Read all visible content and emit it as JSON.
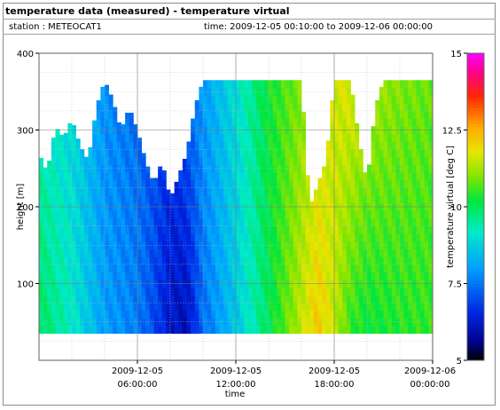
{
  "header": {
    "title": "temperature data (measured) - temperature virtual",
    "station": "station : METEOCAT1",
    "timerange": "time: 2009-12-05 00:10:00 to 2009-12-06 00:00:00"
  },
  "chart_data": {
    "type": "heatmap",
    "xlabel": "time",
    "ylabel": "height [m]",
    "colorbar_label": "temperature virtual [deg C]",
    "x_range_hours": [
      0,
      24
    ],
    "ylim": [
      0,
      400
    ],
    "clim": [
      5,
      15
    ],
    "x_ticks": [
      {
        "hour": 6,
        "line1": "2009-12-05",
        "line2": "06:00:00"
      },
      {
        "hour": 12,
        "line1": "2009-12-05",
        "line2": "12:00:00"
      },
      {
        "hour": 18,
        "line1": "2009-12-05",
        "line2": "18:00:00"
      },
      {
        "hour": 24,
        "line1": "2009-12-06",
        "line2": "00:00:00"
      }
    ],
    "y_ticks": [
      100,
      200,
      300,
      400
    ],
    "colorbar_ticks": [
      {
        "value": 5,
        "label": "5"
      },
      {
        "value": 7.5,
        "label": "7.5"
      },
      {
        "value": 10,
        "label": "10"
      },
      {
        "value": 12.5,
        "label": "12.5"
      },
      {
        "value": 15,
        "label": "15"
      }
    ],
    "data_min_height_m": 35,
    "profile_top_m": [
      [
        0.0,
        270
      ],
      [
        0.5,
        245
      ],
      [
        1.0,
        305
      ],
      [
        1.5,
        290
      ],
      [
        2.0,
        315
      ],
      [
        2.5,
        280
      ],
      [
        3.0,
        260
      ],
      [
        3.5,
        330
      ],
      [
        4.0,
        365
      ],
      [
        4.5,
        340
      ],
      [
        5.0,
        300
      ],
      [
        5.5,
        330
      ],
      [
        6.0,
        300
      ],
      [
        6.5,
        260
      ],
      [
        7.0,
        230
      ],
      [
        7.5,
        260
      ],
      [
        8.0,
        210
      ],
      [
        8.5,
        240
      ],
      [
        9.0,
        270
      ],
      [
        9.5,
        330
      ],
      [
        10.0,
        365
      ],
      [
        11.0,
        365
      ],
      [
        12.0,
        365
      ],
      [
        13.0,
        365
      ],
      [
        14.0,
        365
      ],
      [
        15.0,
        365
      ],
      [
        16.0,
        365
      ],
      [
        16.5,
        200
      ],
      [
        17.0,
        230
      ],
      [
        17.5,
        260
      ],
      [
        18.0,
        365
      ],
      [
        19.0,
        365
      ],
      [
        19.5,
        290
      ],
      [
        20.0,
        230
      ],
      [
        20.5,
        330
      ],
      [
        21.0,
        365
      ],
      [
        22.0,
        365
      ],
      [
        23.0,
        365
      ],
      [
        24.0,
        365
      ]
    ],
    "surface_temperature_by_hour": [
      [
        0,
        10.0
      ],
      [
        2,
        9.2
      ],
      [
        4,
        8.0
      ],
      [
        6,
        7.6
      ],
      [
        7,
        7.0
      ],
      [
        8,
        6.2
      ],
      [
        9,
        6.0
      ],
      [
        10,
        7.4
      ],
      [
        12,
        8.6
      ],
      [
        14,
        10.0
      ],
      [
        16,
        11.5
      ],
      [
        17,
        12.2
      ],
      [
        18,
        11.5
      ],
      [
        19,
        10.5
      ],
      [
        20,
        10.2
      ],
      [
        22,
        10.4
      ],
      [
        24,
        10.5
      ]
    ],
    "upper_temperature_by_hour": [
      [
        0,
        9.2
      ],
      [
        2,
        8.8
      ],
      [
        4,
        7.8
      ],
      [
        6,
        7.4
      ],
      [
        8,
        6.8
      ],
      [
        10,
        8.0
      ],
      [
        12,
        9.0
      ],
      [
        14,
        10.3
      ],
      [
        16,
        11.0
      ],
      [
        17,
        11.4
      ],
      [
        18,
        11.6
      ],
      [
        19,
        11.8
      ],
      [
        20,
        11.4
      ],
      [
        22,
        11.0
      ],
      [
        24,
        10.8
      ]
    ]
  }
}
